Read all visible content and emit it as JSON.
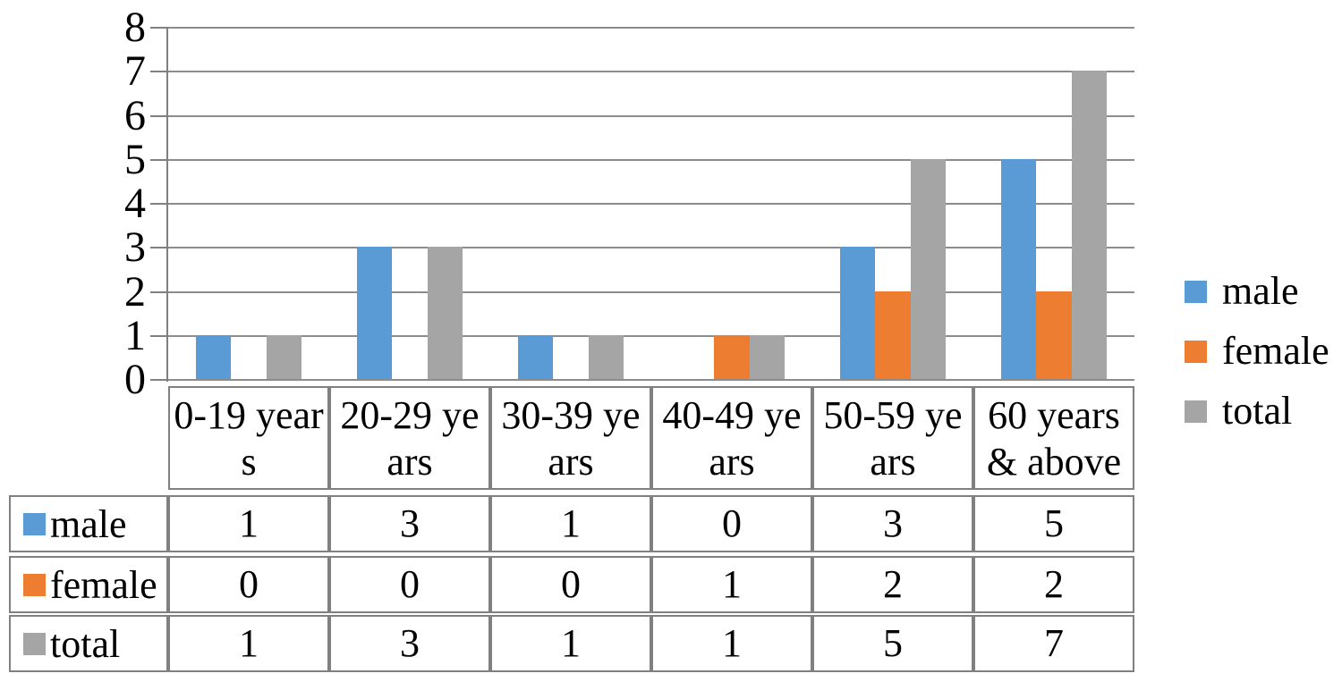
{
  "chart_data": {
    "type": "bar",
    "title": "",
    "xlabel": "",
    "ylabel": "",
    "categories": [
      "0-19 years",
      "20-29 years",
      "30-39 years",
      "40-49 years",
      "50-59 years",
      "60 years & above"
    ],
    "category_label_lines": [
      [
        "0-19 year",
        "s"
      ],
      [
        "20-29 ye",
        "ars"
      ],
      [
        "30-39 ye",
        "ars"
      ],
      [
        "40-49 ye",
        "ars"
      ],
      [
        "50-59 ye",
        "ars"
      ],
      [
        "60 years",
        "& above"
      ]
    ],
    "series": [
      {
        "name": "male",
        "color": "#5B9BD5",
        "values": [
          1,
          3,
          1,
          0,
          3,
          5
        ]
      },
      {
        "name": "female",
        "color": "#ED7D31",
        "values": [
          0,
          0,
          0,
          1,
          2,
          2
        ]
      },
      {
        "name": "total",
        "color": "#A5A5A5",
        "values": [
          1,
          3,
          1,
          1,
          5,
          7
        ]
      }
    ],
    "ylim": [
      0,
      8
    ],
    "yticks": [
      0,
      1,
      2,
      3,
      4,
      5,
      6,
      7,
      8
    ],
    "grid": true,
    "legend_position": "right",
    "legend_items": [
      "male",
      "female",
      "total"
    ],
    "data_table_shown": true
  },
  "colors": {
    "gridline": "#8C8C8C",
    "axis_line": "#808080",
    "table_border": "#808080",
    "text": "#000000",
    "background": "#FFFFFF"
  }
}
